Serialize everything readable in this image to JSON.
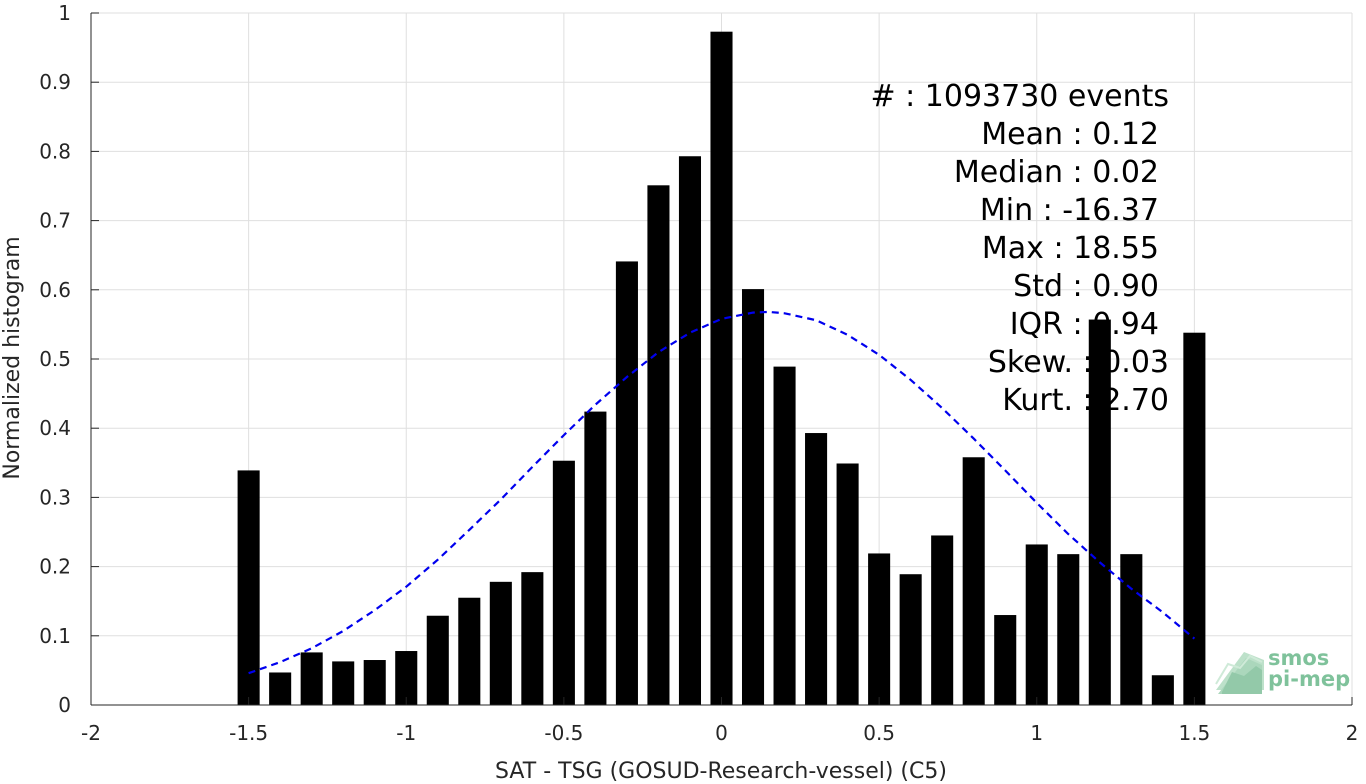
{
  "chart_data": {
    "type": "bar",
    "xlabel": "SAT - TSG (GOSUD-Research-vessel) (C5)",
    "ylabel": "Normalized histogram",
    "xlim": [
      -2,
      2
    ],
    "ylim": [
      0,
      1
    ],
    "grid": true,
    "x_ticks": [
      -2,
      -1.5,
      -1,
      -0.5,
      0,
      0.5,
      1,
      1.5,
      2
    ],
    "x_tick_labels": [
      "-2",
      "-1.5",
      "-1",
      "-0.5",
      "0",
      "0.5",
      "1",
      "1.5",
      "2"
    ],
    "y_ticks": [
      0,
      0.1,
      0.2,
      0.3,
      0.4,
      0.5,
      0.6,
      0.7,
      0.8,
      0.9,
      1
    ],
    "y_tick_labels": [
      "0",
      "0.1",
      "0.2",
      "0.3",
      "0.4",
      "0.5",
      "0.6",
      "0.7",
      "0.8",
      "0.9",
      "1"
    ],
    "bar_color": "#000000",
    "bar_width": 0.07,
    "bins": [
      -1.5,
      -1.4,
      -1.3,
      -1.2,
      -1.1,
      -1.0,
      -0.9,
      -0.8,
      -0.7,
      -0.6,
      -0.5,
      -0.4,
      -0.3,
      -0.2,
      -0.1,
      0.0,
      0.1,
      0.2,
      0.3,
      0.4,
      0.5,
      0.6,
      0.7,
      0.8,
      0.9,
      1.0,
      1.1,
      1.2,
      1.3,
      1.4,
      1.5
    ],
    "values": [
      0.339,
      0.047,
      0.076,
      0.063,
      0.065,
      0.078,
      0.129,
      0.155,
      0.178,
      0.192,
      0.353,
      0.424,
      0.641,
      0.751,
      0.793,
      0.973,
      0.601,
      0.489,
      0.393,
      0.349,
      0.219,
      0.189,
      0.245,
      0.358,
      0.13,
      0.232,
      0.218,
      0.557,
      0.218,
      0.043,
      0.538
    ],
    "fit": {
      "name": "Gaussian fit",
      "style": "dashed",
      "color": "#0000ee",
      "x": [
        -1.5,
        -1.4,
        -1.3,
        -1.2,
        -1.1,
        -1.0,
        -0.9,
        -0.8,
        -0.7,
        -0.6,
        -0.5,
        -0.4,
        -0.3,
        -0.2,
        -0.1,
        0.0,
        0.1,
        0.15,
        0.2,
        0.3,
        0.4,
        0.5,
        0.6,
        0.7,
        0.8,
        0.9,
        1.0,
        1.1,
        1.2,
        1.3,
        1.4,
        1.5
      ],
      "y": [
        0.046,
        0.062,
        0.082,
        0.107,
        0.137,
        0.171,
        0.21,
        0.253,
        0.297,
        0.344,
        0.39,
        0.434,
        0.474,
        0.51,
        0.538,
        0.558,
        0.567,
        0.568,
        0.566,
        0.556,
        0.535,
        0.506,
        0.47,
        0.429,
        0.385,
        0.339,
        0.292,
        0.247,
        0.206,
        0.168,
        0.134,
        0.096
      ]
    },
    "stats": [
      {
        "label": "#  : 1093730 events"
      },
      {
        "label": "Mean : 0.12"
      },
      {
        "label": "Median : 0.02"
      },
      {
        "label": "Min : -16.37"
      },
      {
        "label": "Max : 18.55"
      },
      {
        "label": "Std : 0.90"
      },
      {
        "label": "IQR : 0.94"
      },
      {
        "label": "Skew. : 0.03"
      },
      {
        "label": "Kurt. : 2.70"
      }
    ]
  },
  "logo": {
    "line1": "smos",
    "line2": "pi-mep",
    "color": "#7fc29b"
  }
}
